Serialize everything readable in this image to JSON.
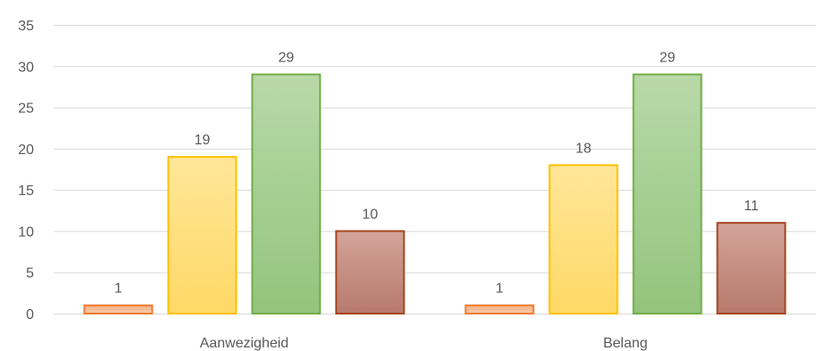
{
  "chart_data": {
    "type": "bar",
    "title": "",
    "xlabel": "",
    "ylabel": "",
    "categories": [
      "Aanwezigheid",
      "Belang"
    ],
    "series": [
      {
        "values": [
          1,
          1
        ],
        "fill_top": "#F4B183",
        "fill_bottom": "#F8CBAD",
        "stroke": "#ED7D31"
      },
      {
        "values": [
          19,
          18
        ],
        "fill_top": "#FFE699",
        "fill_bottom": "#FFD966",
        "stroke": "#FFC000"
      },
      {
        "values": [
          29,
          29
        ],
        "fill_top": "#B8D9A8",
        "fill_bottom": "#93C47D",
        "stroke": "#70AD47"
      },
      {
        "values": [
          10,
          11
        ],
        "fill_top": "#D4A49A",
        "fill_bottom": "#B77A6C",
        "stroke": "#A5441E"
      }
    ],
    "ylim": [
      0,
      35
    ],
    "yticks": [
      "0",
      "5",
      "10",
      "15",
      "20",
      "25",
      "30",
      "35"
    ],
    "grid": true,
    "legend": "none"
  }
}
